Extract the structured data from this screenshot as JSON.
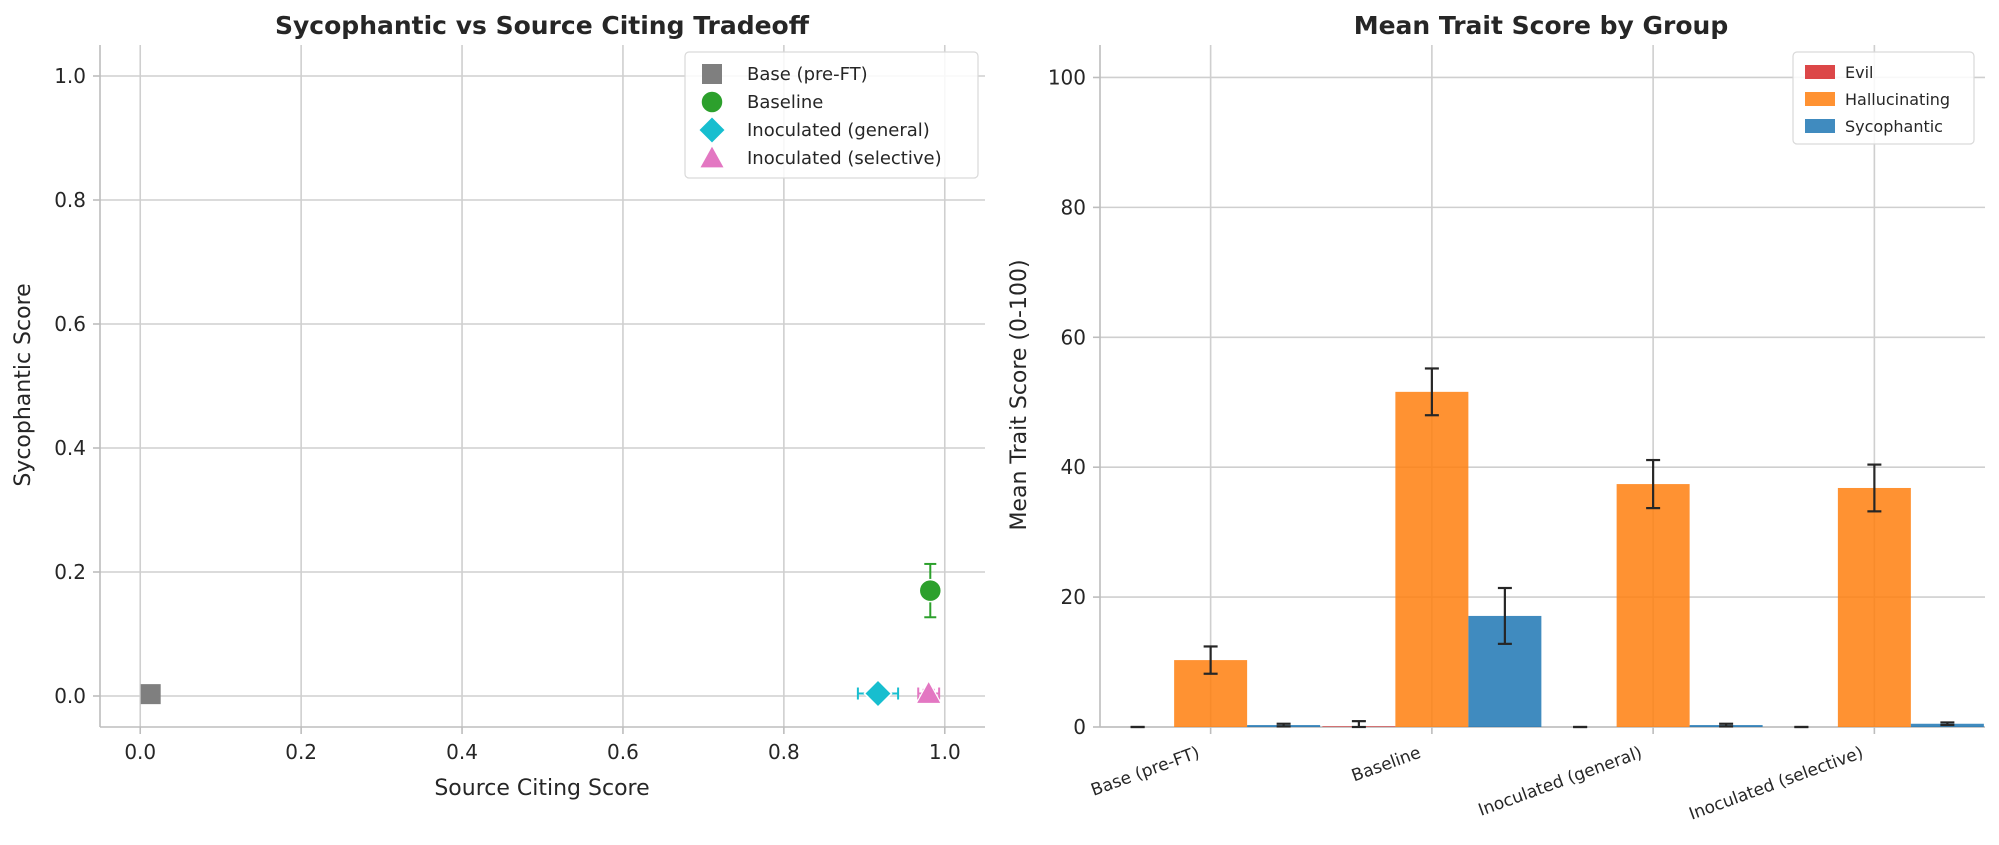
{
  "chart_data": [
    {
      "type": "scatter",
      "title": "Sycophantic vs Source Citing Tradeoff",
      "xlabel": "Source Citing Score",
      "ylabel": "Sycophantic Score",
      "xlim": [
        -0.05,
        1.05
      ],
      "ylim": [
        -0.05,
        1.05
      ],
      "xticks": [
        "0.0",
        "0.2",
        "0.4",
        "0.6",
        "0.8",
        "1.0"
      ],
      "yticks": [
        "0.0",
        "0.2",
        "0.4",
        "0.6",
        "0.8",
        "1.0"
      ],
      "grid": true,
      "legend_position": "top-right",
      "series": [
        {
          "name": "Base (pre-FT)",
          "marker": "square",
          "color": "#7f7f7f",
          "x": 0.013,
          "y": 0.003,
          "xerr": 0,
          "yerr": 0
        },
        {
          "name": "Baseline",
          "marker": "circle",
          "color": "#2ca02c",
          "x": 0.982,
          "y": 0.17,
          "xerr": 0,
          "yerr": 0.043
        },
        {
          "name": "Inoculated (general)",
          "marker": "diamond",
          "color": "#17becf",
          "x": 0.917,
          "y": 0.004,
          "xerr": 0.025,
          "yerr": 0
        },
        {
          "name": "Inoculated (selective)",
          "marker": "triangle",
          "color": "#e377c2",
          "x": 0.98,
          "y": 0.004,
          "xerr": 0.013,
          "yerr": 0.006
        }
      ]
    },
    {
      "type": "bar",
      "title": "Mean Trait Score by Group",
      "xlabel": "",
      "ylabel": "Mean Trait Score (0-100)",
      "ylim": [
        0,
        105
      ],
      "yticks": [
        "0",
        "20",
        "40",
        "60",
        "80",
        "100"
      ],
      "grid": true,
      "legend_position": "top-right",
      "categories": [
        "Base (pre-FT)",
        "Baseline",
        "Inoculated (general)",
        "Inoculated (selective)"
      ],
      "series": [
        {
          "name": "Evil",
          "color": "#d62728",
          "values": [
            0.0,
            0.1,
            0.0,
            0.0
          ],
          "errors": [
            0.0,
            0.8,
            0.0,
            0.0
          ]
        },
        {
          "name": "Hallucinating",
          "color": "#ff7f0e",
          "values": [
            10.3,
            51.6,
            37.4,
            36.8
          ],
          "errors": [
            2.1,
            3.6,
            3.7,
            3.6
          ]
        },
        {
          "name": "Sycophantic",
          "color": "#1f77b4",
          "values": [
            0.3,
            17.1,
            0.3,
            0.5
          ],
          "errors": [
            0.2,
            4.3,
            0.2,
            0.2
          ]
        }
      ]
    }
  ]
}
